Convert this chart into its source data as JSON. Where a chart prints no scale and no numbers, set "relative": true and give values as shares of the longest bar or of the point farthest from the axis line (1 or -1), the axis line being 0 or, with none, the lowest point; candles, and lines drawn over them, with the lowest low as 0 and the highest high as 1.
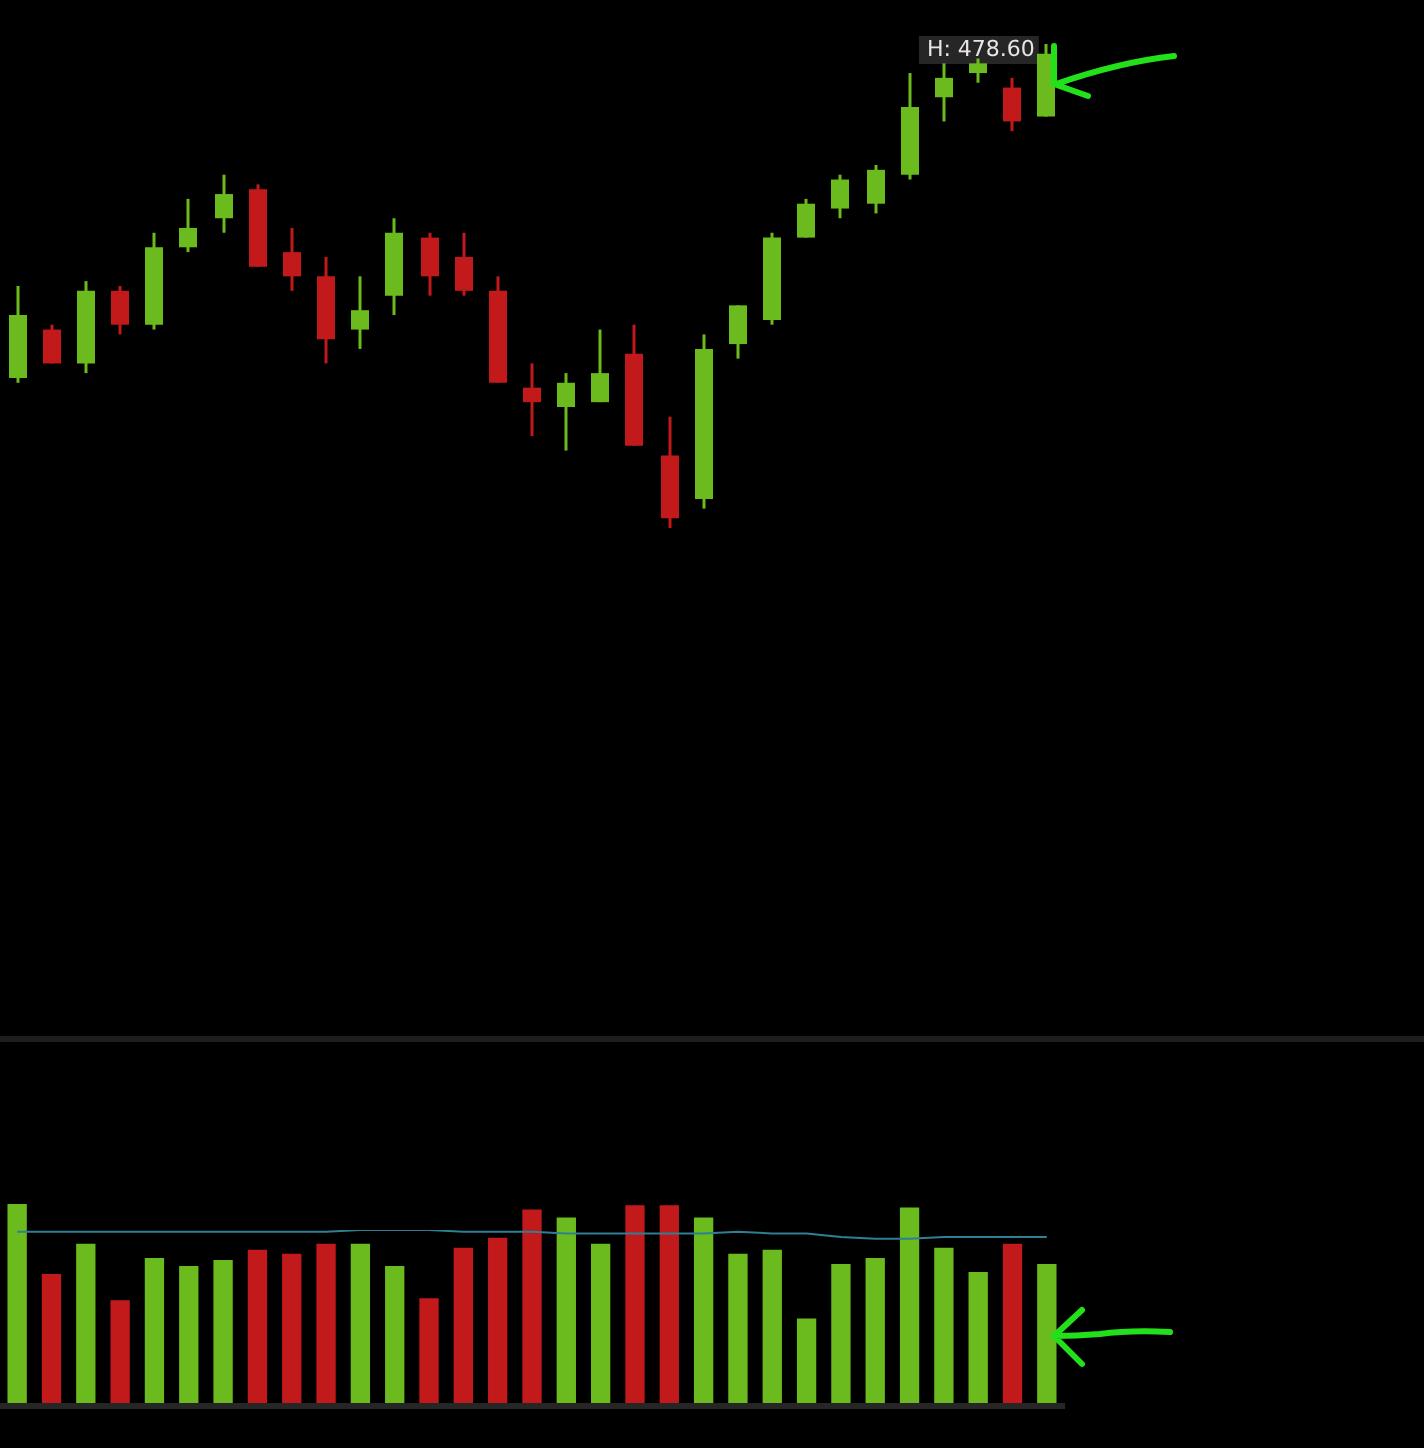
{
  "chart_data": [
    {
      "type": "candlestick",
      "relative": true,
      "tick_labels": false,
      "legend": false,
      "grid": false,
      "categories": [
        null,
        null,
        null,
        null,
        null,
        null,
        null,
        null,
        null,
        null,
        null,
        null,
        null,
        null,
        null,
        null,
        null,
        null,
        null,
        null,
        null,
        null,
        null,
        null,
        null,
        null,
        null,
        null,
        null,
        null,
        null
      ],
      "ohlc": [
        [
          0.31,
          0.5,
          0.3,
          0.44
        ],
        [
          0.41,
          0.42,
          0.34,
          0.34
        ],
        [
          0.34,
          0.51,
          0.32,
          0.49
        ],
        [
          0.49,
          0.5,
          0.4,
          0.42
        ],
        [
          0.42,
          0.61,
          0.41,
          0.58
        ],
        [
          0.58,
          0.68,
          0.57,
          0.62
        ],
        [
          0.64,
          0.73,
          0.61,
          0.69
        ],
        [
          0.7,
          0.71,
          0.54,
          0.54
        ],
        [
          0.57,
          0.62,
          0.49,
          0.52
        ],
        [
          0.52,
          0.56,
          0.34,
          0.39
        ],
        [
          0.41,
          0.52,
          0.37,
          0.45
        ],
        [
          0.48,
          0.64,
          0.44,
          0.61
        ],
        [
          0.6,
          0.61,
          0.48,
          0.52
        ],
        [
          0.56,
          0.61,
          0.48,
          0.49
        ],
        [
          0.49,
          0.52,
          0.3,
          0.3
        ],
        [
          0.29,
          0.34,
          0.19,
          0.26
        ],
        [
          0.25,
          0.32,
          0.16,
          0.3
        ],
        [
          0.26,
          0.41,
          0.26,
          0.32
        ],
        [
          0.36,
          0.42,
          0.17,
          0.17
        ],
        [
          0.15,
          0.23,
          0,
          0.02
        ],
        [
          0.06,
          0.4,
          0.04,
          0.37
        ],
        [
          0.38,
          0.46,
          0.35,
          0.46
        ],
        [
          0.43,
          0.61,
          0.42,
          0.6
        ],
        [
          0.6,
          0.68,
          0.6,
          0.67
        ],
        [
          0.66,
          0.73,
          0.64,
          0.72
        ],
        [
          0.67,
          0.75,
          0.65,
          0.74
        ],
        [
          0.73,
          0.94,
          0.72,
          0.87
        ],
        [
          0.89,
          0.96,
          0.84,
          0.93
        ],
        [
          0.94,
          0.97,
          0.92,
          0.96
        ],
        [
          0.91,
          0.93,
          0.82,
          0.84
        ],
        [
          0.85,
          1,
          0.85,
          0.98
        ]
      ],
      "colors": [
        "#6cbb1e",
        "#c21a1a",
        "#6cbb1e",
        "#c21a1a",
        "#6cbb1e",
        "#6cbb1e",
        "#6cbb1e",
        "#c21a1a",
        "#c21a1a",
        "#c21a1a",
        "#6cbb1e",
        "#6cbb1e",
        "#c21a1a",
        "#c21a1a",
        "#c21a1a",
        "#c21a1a",
        "#6cbb1e",
        "#6cbb1e",
        "#c21a1a",
        "#c21a1a",
        "#6cbb1e",
        "#6cbb1e",
        "#6cbb1e",
        "#6cbb1e",
        "#6cbb1e",
        "#6cbb1e",
        "#6cbb1e",
        "#6cbb1e",
        "#6cbb1e",
        "#c21a1a",
        "#6cbb1e"
      ],
      "annotations": [
        "H: 478.60"
      ]
    },
    {
      "type": "bar",
      "relative": true,
      "tick_labels": false,
      "legend": false,
      "grid": false,
      "categories": [
        null,
        null,
        null,
        null,
        null,
        null,
        null,
        null,
        null,
        null,
        null,
        null,
        null,
        null,
        null,
        null,
        null,
        null,
        null,
        null,
        null,
        null,
        null,
        null,
        null,
        null,
        null,
        null,
        null,
        null,
        null
      ],
      "series": [
        {
          "type": "bar",
          "values": [
            1,
            0.65,
            0.8,
            0.52,
            0.73,
            0.69,
            0.72,
            0.77,
            0.75,
            0.8,
            0.8,
            0.69,
            0.53,
            0.78,
            0.83,
            0.97,
            0.93,
            0.8,
            0.99,
            0.99,
            0.93,
            0.75,
            0.77,
            0.43,
            0.7,
            0.73,
            0.98,
            0.78,
            0.66,
            0.8,
            0.7
          ],
          "colors": [
            "#6cbb1e",
            "#c21a1a",
            "#6cbb1e",
            "#c21a1a",
            "#6cbb1e",
            "#6cbb1e",
            "#6cbb1e",
            "#c21a1a",
            "#c21a1a",
            "#c21a1a",
            "#6cbb1e",
            "#6cbb1e",
            "#c21a1a",
            "#c21a1a",
            "#c21a1a",
            "#c21a1a",
            "#6cbb1e",
            "#6cbb1e",
            "#c21a1a",
            "#c21a1a",
            "#6cbb1e",
            "#6cbb1e",
            "#6cbb1e",
            "#6cbb1e",
            "#6cbb1e",
            "#6cbb1e",
            "#6cbb1e",
            "#6cbb1e",
            "#6cbb1e",
            "#c21a1a",
            "#6cbb1e"
          ]
        }
      ]
    },
    {
      "type": "line",
      "relative": true,
      "tick_labels": false,
      "legend": false,
      "grid": false,
      "categories": [
        null,
        null,
        null,
        null,
        null,
        null,
        null,
        null,
        null,
        null,
        null,
        null,
        null,
        null,
        null,
        null,
        null,
        null,
        null,
        null,
        null,
        null,
        null,
        null,
        null,
        null,
        null,
        null,
        null,
        null,
        null
      ],
      "series": [
        {
          "color": "#2f7f95",
          "values": [
            0.99,
            0.99,
            0.99,
            0.99,
            0.99,
            0.99,
            0.99,
            0.99,
            0.99,
            0.99,
            1,
            1,
            1,
            0.99,
            0.99,
            0.99,
            0.98,
            0.98,
            0.98,
            0.98,
            0.98,
            0.99,
            0.98,
            0.98,
            0.96,
            0.95,
            0.95,
            0.96,
            0.96,
            0.96,
            0.96
          ]
        }
      ]
    }
  ]
}
